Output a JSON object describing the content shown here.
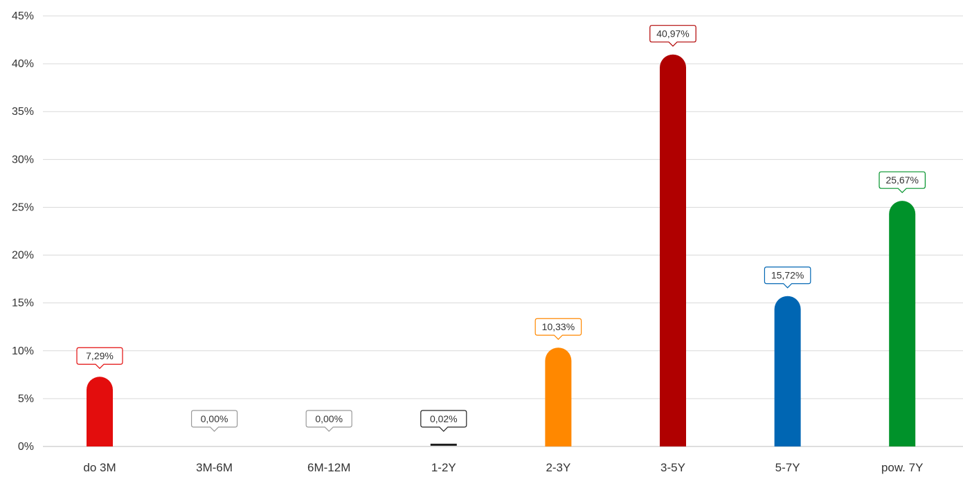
{
  "chart_data": {
    "type": "bar",
    "categories": [
      "do 3M",
      "3M-6M",
      "6M-12M",
      "1-2Y",
      "2-3Y",
      "3-5Y",
      "5-7Y",
      "pow. 7Y"
    ],
    "values": [
      7.29,
      0.0,
      0.0,
      0.02,
      10.33,
      40.97,
      15.72,
      25.67
    ],
    "value_labels": [
      "7,29%",
      "0,00%",
      "0,00%",
      "0,02%",
      "10,33%",
      "40,97%",
      "15,72%",
      "25,67%"
    ],
    "bar_colors": [
      "#e30d0d",
      "#999999",
      "#999999",
      "#222222",
      "#ff8800",
      "#b00000",
      "#0066b3",
      "#00922a"
    ],
    "label_border_colors": [
      "#e30d0d",
      "#999999",
      "#999999",
      "#222222",
      "#ff8800",
      "#b00000",
      "#0066b3",
      "#00922a"
    ],
    "ylim": [
      0,
      45
    ],
    "yticks": [
      0,
      5,
      10,
      15,
      20,
      25,
      30,
      35,
      40,
      45
    ],
    "ytick_labels": [
      "0%",
      "5%",
      "10%",
      "15%",
      "20%",
      "25%",
      "30%",
      "35%",
      "40%",
      "45%"
    ],
    "title": "",
    "xlabel": "",
    "ylabel": "",
    "grid": true,
    "legend": "none"
  }
}
